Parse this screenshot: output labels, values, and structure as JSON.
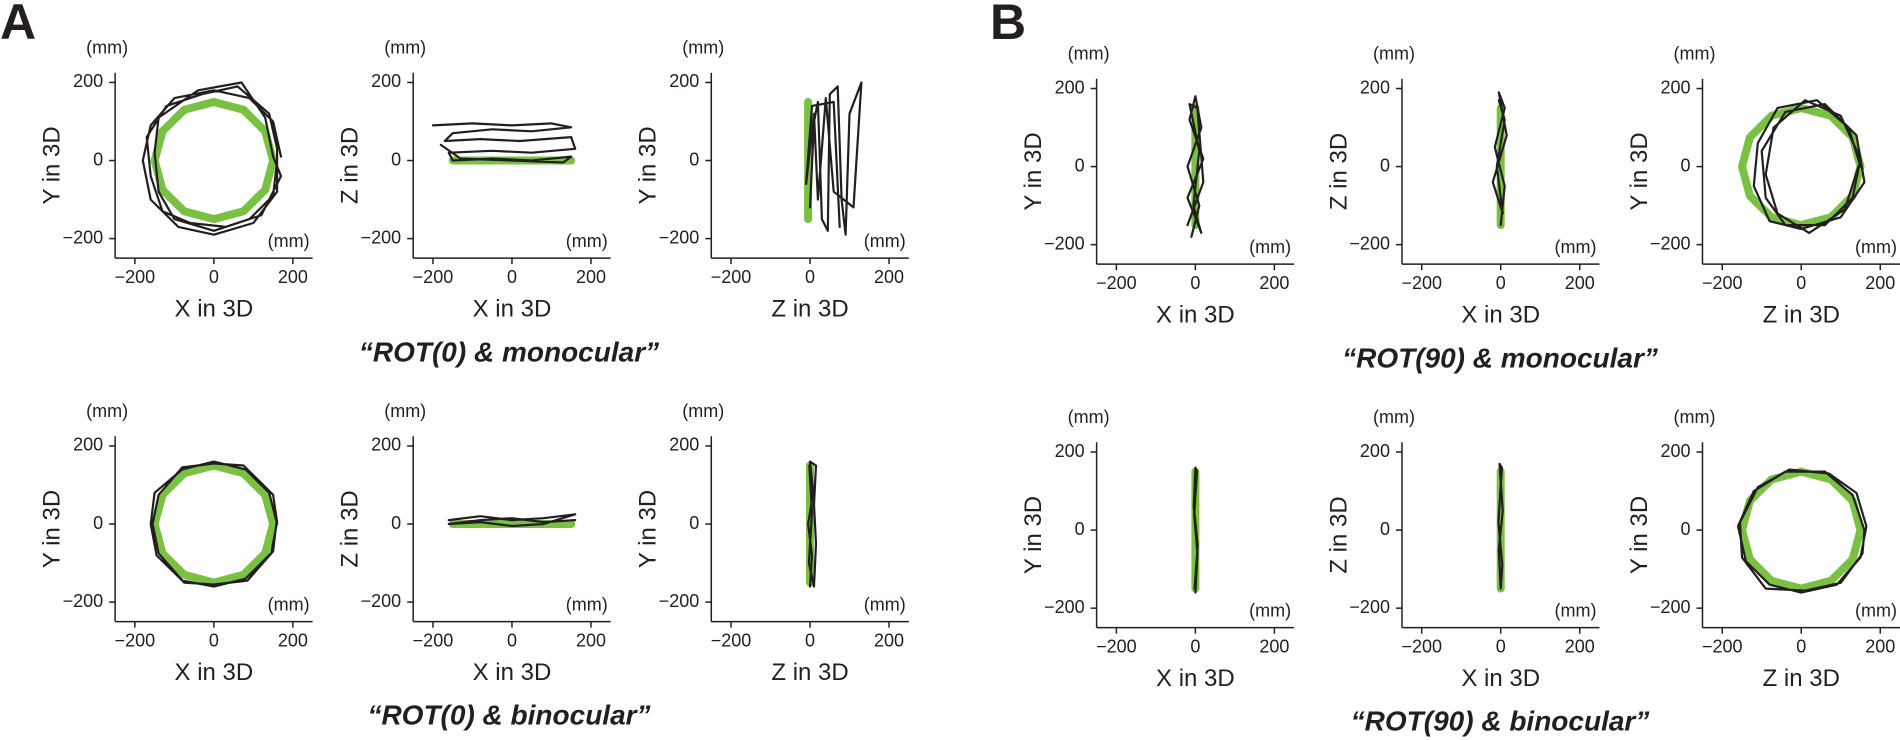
{
  "panel_labels": [
    "A",
    "B"
  ],
  "captions": [
    "“ROT(0) & monocular”",
    "“ROT(0) & binocular”",
    "“ROT(90) & monocular”",
    "“ROT(90) & binocular”"
  ],
  "chart_data": [
    {
      "type": "line",
      "x_label": "X in 3D",
      "y_label": "Y in 3D",
      "x_unit": "(mm)",
      "y_unit": "(mm)",
      "xlim": [
        -250,
        250
      ],
      "ylim": [
        -250,
        225
      ],
      "xticks": [
        {
          "value": -200,
          "label": "−200"
        },
        0,
        200
      ],
      "yticks": [
        {
          "value": -200,
          "label": "−200"
        },
        0,
        200
      ],
      "series": [
        {
          "color": "#7ac143",
          "x": [
            150,
            130,
            75,
            0,
            -75,
            -130,
            -150,
            -130,
            -75,
            0,
            75,
            130,
            150
          ],
          "values": [
            0,
            75,
            130,
            150,
            130,
            75,
            0,
            -75,
            -130,
            -150,
            -130,
            -75,
            0
          ]
        },
        {
          "color": "#231f20",
          "x": [
            170,
            150,
            90,
            0,
            -100,
            -160,
            -180,
            -160,
            -90,
            0,
            100,
            160,
            160,
            140,
            60,
            -30,
            -120,
            -170,
            -160,
            -130,
            -60,
            30,
            120,
            170,
            150,
            130,
            70,
            -40,
            -140,
            -150,
            -140,
            -100,
            0,
            90,
            150,
            160
          ],
          "values": [
            10,
            100,
            160,
            180,
            160,
            90,
            0,
            -100,
            -170,
            -190,
            -160,
            -80,
            30,
            120,
            190,
            170,
            140,
            60,
            -40,
            -130,
            -160,
            -170,
            -140,
            -40,
            10,
            110,
            200,
            180,
            110,
            20,
            -80,
            -150,
            -180,
            -150,
            -90,
            0
          ]
        }
      ]
    },
    {
      "type": "line",
      "x_label": "X in 3D",
      "y_label": "Z in 3D",
      "x_unit": "(mm)",
      "y_unit": "(mm)",
      "xlim": [
        -250,
        250
      ],
      "ylim": [
        -250,
        225
      ],
      "xticks": [
        {
          "value": -200,
          "label": "−200"
        },
        0,
        200
      ],
      "yticks": [
        {
          "value": -200,
          "label": "−200"
        },
        0,
        200
      ],
      "series": [
        {
          "color": "#7ac143",
          "x": [
            -150,
            150
          ],
          "values": [
            0,
            0
          ]
        },
        {
          "color": "#231f20",
          "x": [
            -200,
            -100,
            0,
            100,
            150,
            50,
            -50,
            -150,
            -170,
            -80,
            20,
            150,
            160,
            50,
            -50,
            -160,
            -150,
            -50,
            50,
            150,
            130,
            0,
            -130,
            -180
          ],
          "values": [
            90,
            95,
            90,
            95,
            85,
            75,
            80,
            70,
            50,
            55,
            50,
            60,
            30,
            20,
            25,
            20,
            0,
            5,
            0,
            10,
            -5,
            0,
            5,
            40
          ]
        }
      ]
    },
    {
      "type": "line",
      "x_label": "Z in 3D",
      "y_label": "Y in 3D",
      "x_unit": "(mm)",
      "y_unit": "(mm)",
      "xlim": [
        -250,
        250
      ],
      "ylim": [
        -250,
        225
      ],
      "xticks": [
        {
          "value": -200,
          "label": "−200"
        },
        0,
        200
      ],
      "yticks": [
        {
          "value": -200,
          "label": "−200"
        },
        0,
        200
      ],
      "series": [
        {
          "color": "#7ac143",
          "x": [
            -5,
            -5
          ],
          "values": [
            -150,
            150
          ]
        },
        {
          "color": "#231f20",
          "x": [
            0,
            10,
            20,
            30,
            45,
            50,
            70,
            80,
            90,
            100,
            130,
            110,
            60,
            40,
            20,
            10,
            -10,
            5,
            60,
            75
          ],
          "values": [
            -120,
            100,
            150,
            -150,
            -180,
            170,
            190,
            -100,
            -190,
            120,
            200,
            -120,
            -80,
            160,
            -100,
            120,
            -60,
            140,
            150,
            -170
          ]
        }
      ]
    },
    {
      "type": "line",
      "x_label": "X in 3D",
      "y_label": "Y in 3D",
      "x_unit": "(mm)",
      "y_unit": "(mm)",
      "xlim": [
        -250,
        250
      ],
      "ylim": [
        -250,
        225
      ],
      "xticks": [
        {
          "value": -200,
          "label": "−200"
        },
        0,
        200
      ],
      "yticks": [
        {
          "value": -200,
          "label": "−200"
        },
        0,
        200
      ],
      "series": [
        {
          "color": "#7ac143",
          "x": [
            150,
            130,
            75,
            0,
            -75,
            -130,
            -150,
            -130,
            -75,
            0,
            75,
            130,
            150
          ],
          "values": [
            0,
            75,
            130,
            150,
            130,
            75,
            0,
            -75,
            -130,
            -150,
            -130,
            -75,
            0
          ]
        },
        {
          "color": "#231f20",
          "x": [
            160,
            140,
            80,
            0,
            -80,
            -150,
            -160,
            -145,
            -80,
            0,
            80,
            145,
            160,
            150,
            75,
            0,
            -80,
            -140,
            -155,
            -140,
            -75,
            0,
            85,
            150,
            158
          ],
          "values": [
            0,
            80,
            140,
            160,
            140,
            80,
            0,
            -80,
            -145,
            -160,
            -140,
            -75,
            5,
            75,
            150,
            155,
            145,
            75,
            0,
            -75,
            -150,
            -155,
            -145,
            -70,
            0
          ]
        }
      ]
    },
    {
      "type": "line",
      "x_label": "X in 3D",
      "y_label": "Z in 3D",
      "x_unit": "(mm)",
      "y_unit": "(mm)",
      "xlim": [
        -250,
        250
      ],
      "ylim": [
        -250,
        225
      ],
      "xticks": [
        {
          "value": -200,
          "label": "−200"
        },
        0,
        200
      ],
      "yticks": [
        {
          "value": -200,
          "label": "−200"
        },
        0,
        200
      ],
      "series": [
        {
          "color": "#7ac143",
          "x": [
            -150,
            150
          ],
          "values": [
            0,
            0
          ]
        },
        {
          "color": "#231f20",
          "x": [
            -160,
            -80,
            0,
            80,
            160,
            80,
            0,
            -80,
            -160,
            -80,
            0,
            80,
            160
          ],
          "values": [
            10,
            20,
            10,
            15,
            25,
            0,
            -5,
            5,
            0,
            10,
            15,
            5,
            10
          ]
        }
      ]
    },
    {
      "type": "line",
      "x_label": "Z in 3D",
      "y_label": "Y in 3D",
      "x_unit": "(mm)",
      "y_unit": "(mm)",
      "xlim": [
        -250,
        250
      ],
      "ylim": [
        -250,
        225
      ],
      "xticks": [
        {
          "value": -200,
          "label": "−200"
        },
        0,
        200
      ],
      "yticks": [
        {
          "value": -200,
          "label": "−200"
        },
        0,
        200
      ],
      "series": [
        {
          "color": "#7ac143",
          "x": [
            0,
            0
          ],
          "values": [
            -150,
            150
          ]
        },
        {
          "color": "#231f20",
          "x": [
            0,
            5,
            -5,
            8,
            0,
            15,
            10,
            15,
            10,
            -3,
            5,
            -2
          ],
          "values": [
            -160,
            -80,
            0,
            80,
            160,
            150,
            50,
            -50,
            -160,
            -100,
            30,
            150
          ]
        }
      ]
    },
    {
      "type": "line",
      "x_label": "X in 3D",
      "y_label": "Y in 3D",
      "x_unit": "(mm)",
      "y_unit": "(mm)",
      "xlim": [
        -250,
        250
      ],
      "ylim": [
        -250,
        225
      ],
      "xticks": [
        {
          "value": -200,
          "label": "−200"
        },
        0,
        200
      ],
      "yticks": [
        {
          "value": -200,
          "label": "−200"
        },
        0,
        200
      ],
      "series": [
        {
          "color": "#7ac143",
          "x": [
            0,
            0
          ],
          "values": [
            -150,
            150
          ]
        },
        {
          "color": "#231f20",
          "x": [
            -10,
            10,
            -20,
            15,
            0,
            -15,
            20,
            -20,
            15,
            -5,
            10,
            -15,
            5,
            20,
            -20
          ],
          "values": [
            -180,
            -100,
            0,
            100,
            180,
            120,
            20,
            -80,
            -170,
            -100,
            40,
            160,
            150,
            -40,
            -150
          ]
        }
      ]
    },
    {
      "type": "line",
      "x_label": "X in 3D",
      "y_label": "Z in 3D",
      "x_unit": "(mm)",
      "y_unit": "(mm)",
      "xlim": [
        -250,
        250
      ],
      "ylim": [
        -250,
        225
      ],
      "xticks": [
        {
          "value": -200,
          "label": "−200"
        },
        0,
        200
      ],
      "yticks": [
        {
          "value": -200,
          "label": "−200"
        },
        0,
        200
      ],
      "series": [
        {
          "color": "#7ac143",
          "x": [
            0,
            0
          ],
          "values": [
            -150,
            150
          ]
        },
        {
          "color": "#231f20",
          "x": [
            0,
            10,
            -15,
            10,
            -5,
            15,
            -20,
            5,
            -10,
            10,
            -5
          ],
          "values": [
            -150,
            -50,
            50,
            150,
            190,
            80,
            -40,
            -120,
            0,
            120,
            170
          ]
        }
      ]
    },
    {
      "type": "line",
      "x_label": "Z in 3D",
      "y_label": "Y in 3D",
      "x_unit": "(mm)",
      "y_unit": "(mm)",
      "xlim": [
        -250,
        250
      ],
      "ylim": [
        -250,
        225
      ],
      "xticks": [
        {
          "value": -200,
          "label": "−200"
        },
        0,
        200
      ],
      "yticks": [
        {
          "value": -200,
          "label": "−200"
        },
        0,
        200
      ],
      "series": [
        {
          "color": "#7ac143",
          "x": [
            150,
            130,
            75,
            0,
            -75,
            -130,
            -150,
            -130,
            -75,
            0,
            75,
            130,
            150
          ],
          "values": [
            0,
            75,
            130,
            150,
            130,
            75,
            0,
            -75,
            -130,
            -150,
            -130,
            -75,
            0
          ]
        },
        {
          "color": "#231f20",
          "x": [
            150,
            120,
            40,
            -60,
            -110,
            -120,
            -80,
            0,
            100,
            160,
            140,
            60,
            -40,
            -100,
            -90,
            -40,
            60,
            130,
            150,
            100,
            10,
            -70,
            -90,
            -60,
            20,
            110,
            145
          ],
          "values": [
            0,
            100,
            170,
            150,
            60,
            -50,
            -140,
            -160,
            -130,
            -40,
            80,
            160,
            140,
            40,
            -80,
            -150,
            -150,
            -80,
            20,
            130,
            170,
            100,
            -20,
            -120,
            -170,
            -110,
            0
          ]
        }
      ]
    },
    {
      "type": "line",
      "x_label": "X in 3D",
      "y_label": "Y in 3D",
      "x_unit": "(mm)",
      "y_unit": "(mm)",
      "xlim": [
        -250,
        250
      ],
      "ylim": [
        -250,
        225
      ],
      "xticks": [
        {
          "value": -200,
          "label": "−200"
        },
        0,
        200
      ],
      "yticks": [
        {
          "value": -200,
          "label": "−200"
        },
        0,
        200
      ],
      "series": [
        {
          "color": "#7ac143",
          "x": [
            0,
            0
          ],
          "values": [
            -150,
            150
          ]
        },
        {
          "color": "#231f20",
          "x": [
            0,
            5,
            -3,
            4,
            0,
            -4,
            6,
            -2
          ],
          "values": [
            -160,
            -60,
            40,
            150,
            160,
            60,
            -40,
            -150
          ]
        }
      ]
    },
    {
      "type": "line",
      "x_label": "X in 3D",
      "y_label": "Z in 3D",
      "x_unit": "(mm)",
      "y_unit": "(mm)",
      "xlim": [
        -250,
        250
      ],
      "ylim": [
        -250,
        225
      ],
      "xticks": [
        {
          "value": -200,
          "label": "−200"
        },
        0,
        200
      ],
      "yticks": [
        {
          "value": -200,
          "label": "−200"
        },
        0,
        200
      ],
      "series": [
        {
          "color": "#7ac143",
          "x": [
            0,
            0
          ],
          "values": [
            -150,
            150
          ]
        },
        {
          "color": "#231f20",
          "x": [
            0,
            -5,
            5,
            -3,
            3,
            -6,
            4,
            0
          ],
          "values": [
            -150,
            -50,
            50,
            170,
            160,
            20,
            -90,
            -150
          ]
        }
      ]
    },
    {
      "type": "line",
      "x_label": "Z in 3D",
      "y_label": "Y in 3D",
      "x_unit": "(mm)",
      "y_unit": "(mm)",
      "xlim": [
        -250,
        250
      ],
      "ylim": [
        -250,
        225
      ],
      "xticks": [
        {
          "value": -200,
          "label": "−200"
        },
        0,
        200
      ],
      "yticks": [
        {
          "value": -200,
          "label": "−200"
        },
        0,
        200
      ],
      "series": [
        {
          "color": "#7ac143",
          "x": [
            150,
            130,
            75,
            0,
            -75,
            -130,
            -150,
            -130,
            -75,
            0,
            75,
            130,
            150
          ],
          "values": [
            0,
            75,
            130,
            150,
            130,
            75,
            0,
            -75,
            -130,
            -150,
            -130,
            -75,
            0
          ]
        },
        {
          "color": "#231f20",
          "x": [
            160,
            130,
            60,
            -40,
            -120,
            -160,
            -140,
            -80,
            0,
            90,
            150,
            165,
            140,
            70,
            -30,
            -110,
            -155,
            -150,
            -90,
            10,
            100,
            155,
            160
          ],
          "values": [
            0,
            90,
            150,
            150,
            100,
            10,
            -80,
            -140,
            -160,
            -140,
            -70,
            10,
            95,
            145,
            155,
            110,
            20,
            -70,
            -150,
            -155,
            -135,
            -60,
            0
          ]
        }
      ]
    }
  ]
}
